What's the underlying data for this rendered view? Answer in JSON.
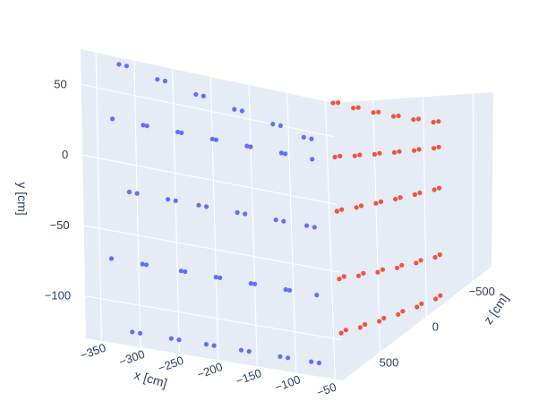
{
  "chart_data": {
    "type": "scatter3d",
    "title": "",
    "legend": "none",
    "grid": true,
    "axes": {
      "x": {
        "label": "x [cm]",
        "range": [
          -370,
          -40
        ],
        "ticks": [
          -350,
          -300,
          -250,
          -200,
          -150,
          -100,
          -50
        ],
        "tick_labels": [
          "−350",
          "−300",
          "−250",
          "−200",
          "−150",
          "−100",
          "−50"
        ]
      },
      "y": {
        "label": "y [cm]",
        "range": [
          -130,
          75
        ],
        "ticks": [
          50,
          0,
          -50,
          -100
        ],
        "tick_labels": [
          "50",
          "0",
          "−50",
          "−100"
        ]
      },
      "z": {
        "label": "z [cm]",
        "range": [
          -700,
          900
        ],
        "ticks": [
          -500,
          0,
          500
        ],
        "tick_labels": [
          "−500",
          "0",
          "500"
        ]
      }
    },
    "colors": {
      "series_blue": "#636efa",
      "series_red": "#ef553b",
      "plane": "#e5ecf6",
      "grid": "#ffffff",
      "text": "#2a3f5f"
    },
    "series": [
      {
        "color": "#636efa",
        "x": [
          -320,
          -310,
          -270,
          -260,
          -220,
          -210,
          -170,
          -160,
          -120,
          -110,
          -80,
          -70,
          -330,
          -290,
          -285,
          -245,
          -240,
          -200,
          -195,
          -155,
          -150,
          -110,
          -105,
          -70,
          -310,
          -300,
          -260,
          -250,
          -220,
          -210,
          -170,
          -160,
          -120,
          -110,
          -80,
          -70,
          -335,
          -295,
          -290,
          -245,
          -240,
          -200,
          -195,
          -155,
          -150,
          -110,
          -105,
          -70,
          -310,
          -300,
          -260,
          -250,
          -215,
          -205,
          -170,
          -160,
          -120,
          -110,
          -80,
          -70
        ],
        "y": [
          70,
          70,
          65,
          65,
          60,
          60,
          55,
          55,
          50,
          50,
          45,
          45,
          30,
          30,
          30,
          30,
          30,
          30,
          30,
          30,
          30,
          30,
          30,
          30,
          -20,
          -20,
          -20,
          -20,
          -20,
          -20,
          -20,
          -20,
          -20,
          -20,
          -20,
          -20,
          -70,
          -70,
          -70,
          -70,
          -70,
          -70,
          -70,
          -70,
          -70,
          -70,
          -70,
          -70,
          -120,
          -120,
          -120,
          -120,
          -120,
          -120,
          -120,
          -120,
          -120,
          -120,
          -120,
          -120
        ],
        "z": [
          -600,
          -600,
          -600,
          -600,
          -600,
          -600,
          -600,
          -600,
          -600,
          -600,
          -600,
          -600,
          -600,
          -600,
          -600,
          -600,
          -600,
          -600,
          -600,
          -600,
          -600,
          -600,
          -600,
          -600,
          -600,
          -600,
          -600,
          -600,
          -600,
          -600,
          -600,
          -600,
          -600,
          -600,
          -600,
          -600,
          -600,
          -600,
          -600,
          -600,
          -600,
          -600,
          -600,
          -600,
          -600,
          -600,
          -600,
          -600,
          -600,
          -600,
          -600,
          -600,
          -600,
          -600,
          -600,
          -600,
          -600,
          -600,
          -600,
          -600
        ]
      },
      {
        "color": "#ef553b",
        "x": [
          -50,
          -50,
          -50,
          -50,
          -50,
          -50,
          -50,
          -50,
          -50,
          -50,
          -50,
          -50,
          -50,
          -50,
          -50,
          -50,
          -50,
          -50,
          -50,
          -50,
          -50,
          -50,
          -50,
          -50,
          -50,
          -50,
          -50,
          -50,
          -50,
          -50,
          -50,
          -50,
          -50,
          -50,
          -50,
          -50,
          -50,
          -50,
          -50,
          -50,
          -50,
          -50,
          -50,
          -50,
          -50,
          -50,
          -50,
          -50,
          -50,
          -50,
          -50,
          -50,
          -50,
          -50,
          -50,
          -50,
          -50,
          -50,
          -50,
          -50
        ],
        "y": [
          75,
          75,
          70,
          70,
          65,
          65,
          60,
          60,
          55,
          55,
          50,
          50,
          35,
          35,
          33,
          33,
          31,
          31,
          29,
          29,
          27,
          27,
          25,
          25,
          -5,
          -5,
          -7,
          -7,
          -9,
          -9,
          -11,
          -11,
          -13,
          -13,
          -15,
          -15,
          -55,
          -55,
          -60,
          -60,
          -65,
          -65,
          -70,
          -70,
          -75,
          -75,
          -80,
          -80,
          -95,
          -95,
          -100,
          -100,
          -105,
          -105,
          -110,
          -110,
          -115,
          -115,
          -120,
          -120
        ],
        "z": [
          900,
          850,
          700,
          650,
          500,
          450,
          300,
          250,
          100,
          50,
          -100,
          -150,
          900,
          850,
          700,
          650,
          500,
          450,
          300,
          250,
          100,
          50,
          -100,
          -150,
          900,
          850,
          700,
          650,
          500,
          450,
          300,
          250,
          100,
          50,
          -100,
          -150,
          900,
          850,
          700,
          650,
          500,
          450,
          300,
          250,
          100,
          50,
          -100,
          -150,
          900,
          850,
          700,
          650,
          500,
          450,
          300,
          250,
          100,
          50,
          -100,
          -150
        ]
      }
    ]
  }
}
